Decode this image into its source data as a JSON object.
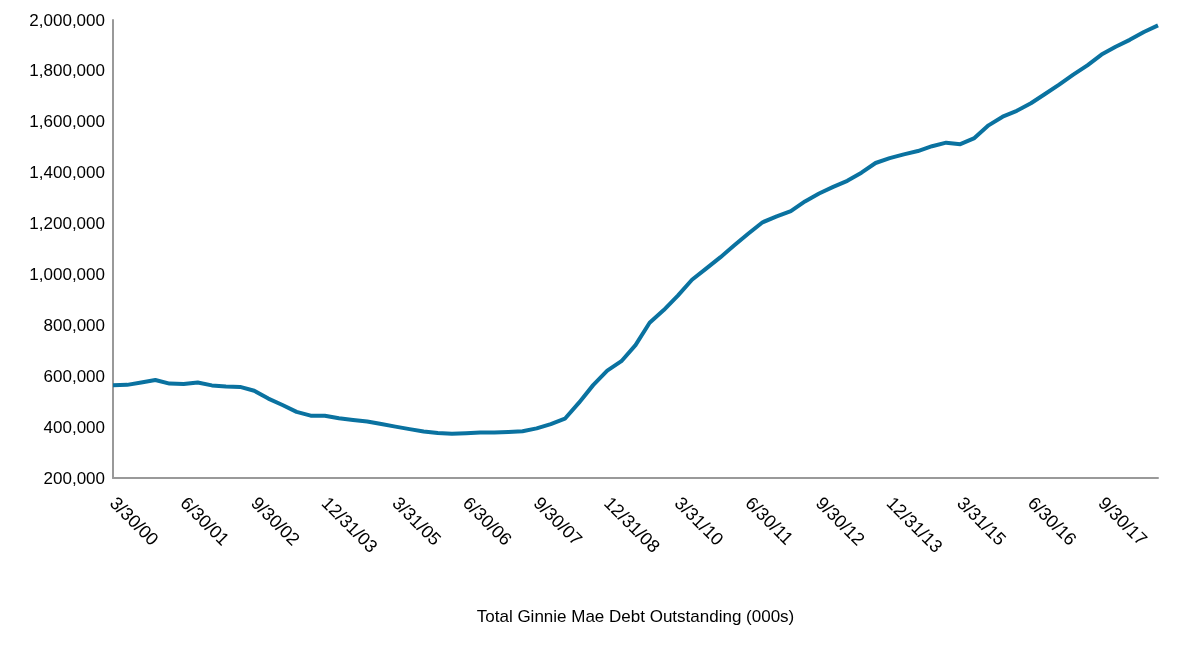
{
  "chart_data": {
    "type": "line",
    "xlabel": "Total Ginnie Mae Debt Outstanding (000s)",
    "categories": [
      "3/30/00",
      null,
      null,
      null,
      null,
      "6/30/01",
      null,
      null,
      null,
      null,
      "9/30/02",
      null,
      null,
      null,
      null,
      "12/31/03",
      null,
      null,
      null,
      null,
      "3/31/05",
      null,
      null,
      null,
      null,
      "6/30/06",
      null,
      null,
      null,
      null,
      "9/30/07",
      null,
      null,
      null,
      null,
      "12/31/08",
      null,
      null,
      null,
      null,
      "3/31/10",
      null,
      null,
      null,
      null,
      "6/30/11",
      null,
      null,
      null,
      null,
      "9/30/12",
      null,
      null,
      null,
      null,
      "12/31/13",
      null,
      null,
      null,
      null,
      "3/31/15",
      null,
      null,
      null,
      null,
      "6/30/16",
      null,
      null,
      null,
      null,
      "9/30/17",
      null,
      null,
      null,
      null
    ],
    "series": [
      {
        "color": "#0a72a0",
        "values": [
          565000,
          566000,
          575000,
          585000,
          571000,
          569000,
          575000,
          564000,
          560000,
          558000,
          543000,
          512000,
          487000,
          460000,
          445000,
          445000,
          435000,
          428000,
          422000,
          412000,
          402000,
          392000,
          383000,
          377000,
          374000,
          376000,
          379000,
          379000,
          381000,
          384000,
          395000,
          412000,
          433000,
          496000,
          565000,
          622000,
          659000,
          722000,
          810000,
          860000,
          917000,
          979000,
          1023000,
          1067000,
          1115000,
          1161000,
          1205000,
          1228000,
          1249000,
          1287000,
          1318000,
          1344000,
          1368000,
          1400000,
          1438000,
          1457000,
          1472000,
          1485000,
          1504000,
          1518000,
          1512000,
          1536000,
          1586000,
          1620000,
          1643000,
          1673000,
          1709000,
          1746000,
          1785000,
          1822000,
          1864000,
          1895000,
          1922000,
          1953000,
          1979000
        ]
      }
    ],
    "ylim": [
      200000,
      2000000
    ],
    "yticks": [
      {
        "value": 200000,
        "label": "200,000"
      },
      {
        "value": 400000,
        "label": "400,000"
      },
      {
        "value": 600000,
        "label": "600,000"
      },
      {
        "value": 800000,
        "label": "800,000"
      },
      {
        "value": 1000000,
        "label": "1,000,000"
      },
      {
        "value": 1200000,
        "label": "1,200,000"
      },
      {
        "value": 1400000,
        "label": "1,400,000"
      },
      {
        "value": 1600000,
        "label": "1,600,000"
      },
      {
        "value": 1800000,
        "label": "1,800,000"
      },
      {
        "value": 2000000,
        "label": "2,000,000"
      }
    ]
  }
}
